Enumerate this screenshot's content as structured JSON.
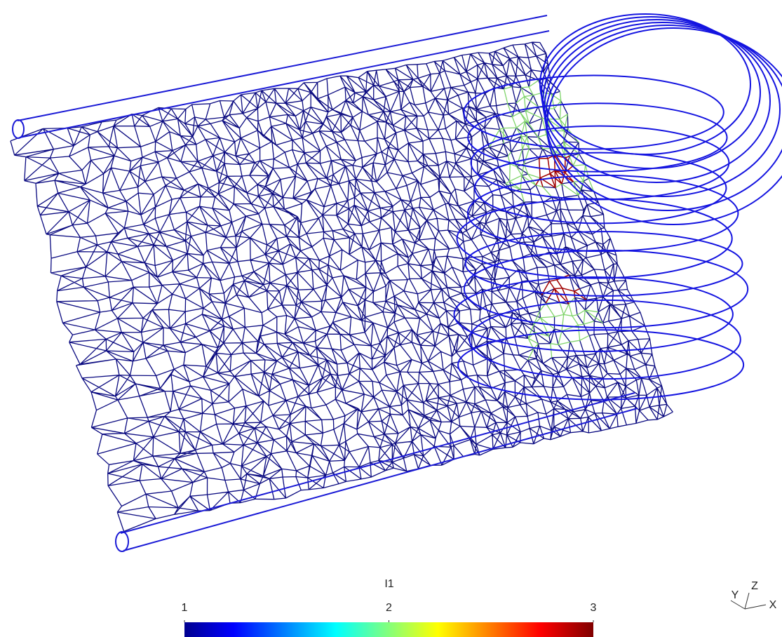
{
  "colorbar": {
    "title": "I1",
    "range": [
      1,
      3
    ],
    "ticks": [
      1,
      2,
      3
    ]
  },
  "axes_triad": {
    "labels": [
      "Y",
      "Z",
      "X"
    ]
  }
}
